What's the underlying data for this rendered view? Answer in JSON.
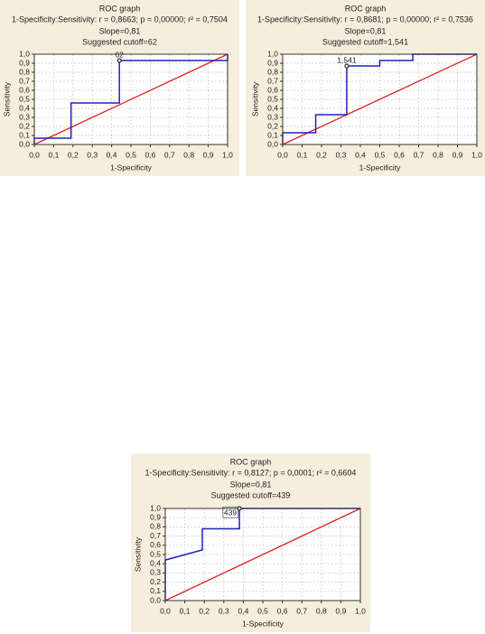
{
  "chart_data": [
    {
      "type": "line",
      "title": "ROC graph",
      "subtitle": "1-Specificity:Sensitivity:   r = 0,8663; p = 0,00000; r² = 0,7504",
      "slope": "Slope=0,81",
      "cutoff": "Suggested cutoff=62",
      "x_label": "1-Specificity",
      "y_label": "Sensitivity",
      "x": [
        0,
        0,
        0.19,
        0.19,
        0.44,
        0.44,
        1,
        1
      ],
      "values": [
        0,
        0.07,
        0.07,
        0.46,
        0.46,
        0.93,
        0.93,
        1
      ],
      "color": "#2020c0",
      "reference_color": "#e02020",
      "cutoff_point": {
        "x": 0.44,
        "y": 0.93,
        "label": "62"
      },
      "xlim": [
        0,
        1
      ],
      "ylim": [
        0,
        1
      ],
      "xticks": [
        {
          "value": 0,
          "label": "0,0"
        },
        {
          "value": 0.1,
          "label": "0,1"
        },
        {
          "value": 0.2,
          "label": "0,2"
        },
        {
          "value": 0.3,
          "label": "0,3"
        },
        {
          "value": 0.4,
          "label": "0,4"
        },
        {
          "value": 0.5,
          "label": "0,5"
        },
        {
          "value": 0.6,
          "label": "0,6"
        },
        {
          "value": 0.7,
          "label": "0,7"
        },
        {
          "value": 0.8,
          "label": "0,8"
        },
        {
          "value": 0.9,
          "label": "0,9"
        },
        {
          "value": 1,
          "label": "1,0"
        }
      ],
      "yticks": [
        {
          "value": 0,
          "label": "0,0"
        },
        {
          "value": 0.1,
          "label": "0,1"
        },
        {
          "value": 0.2,
          "label": "0,2"
        },
        {
          "value": 0.3,
          "label": "0,3"
        },
        {
          "value": 0.4,
          "label": "0,4"
        },
        {
          "value": 0.5,
          "label": "0,5"
        },
        {
          "value": 0.6,
          "label": "0,6"
        },
        {
          "value": 0.7,
          "label": "0,7"
        },
        {
          "value": 0.8,
          "label": "0,8"
        },
        {
          "value": 0.9,
          "label": "0,9"
        },
        {
          "value": 1,
          "label": "1,0"
        }
      ],
      "grid": true
    },
    {
      "type": "line",
      "title": "ROC graph",
      "subtitle": "1-Specificity:Sensitivity:   r = 0,8681; p = 0,00000; r² = 0,7536",
      "slope": "Slope=0,81",
      "cutoff": "Suggested cutoff=1,541",
      "x_label": "1-Specificity",
      "y_label": "Sensitivity",
      "x": [
        0,
        0,
        0.17,
        0.17,
        0.33,
        0.33,
        0.5,
        0.5,
        0.67,
        0.67,
        1
      ],
      "values": [
        0,
        0.13,
        0.13,
        0.33,
        0.33,
        0.87,
        0.87,
        0.93,
        0.93,
        1,
        1
      ],
      "color": "#2020c0",
      "reference_color": "#e02020",
      "cutoff_point": {
        "x": 0.33,
        "y": 0.87,
        "label": "1,541"
      },
      "xlim": [
        0,
        1
      ],
      "ylim": [
        0,
        1
      ],
      "xticks": [
        {
          "value": 0,
          "label": "0,0"
        },
        {
          "value": 0.1,
          "label": "0,1"
        },
        {
          "value": 0.2,
          "label": "0,2"
        },
        {
          "value": 0.3,
          "label": "0,3"
        },
        {
          "value": 0.4,
          "label": "0,4"
        },
        {
          "value": 0.5,
          "label": "0,5"
        },
        {
          "value": 0.6,
          "label": "0,6"
        },
        {
          "value": 0.7,
          "label": "0,7"
        },
        {
          "value": 0.8,
          "label": "0,8"
        },
        {
          "value": 0.9,
          "label": "0,9"
        },
        {
          "value": 1,
          "label": "1,0"
        }
      ],
      "yticks": [
        {
          "value": 0,
          "label": "0,0"
        },
        {
          "value": 0.1,
          "label": "0,1"
        },
        {
          "value": 0.2,
          "label": "0,2"
        },
        {
          "value": 0.3,
          "label": "0,3"
        },
        {
          "value": 0.4,
          "label": "0,4"
        },
        {
          "value": 0.5,
          "label": "0,5"
        },
        {
          "value": 0.6,
          "label": "0,6"
        },
        {
          "value": 0.7,
          "label": "0,7"
        },
        {
          "value": 0.8,
          "label": "0,8"
        },
        {
          "value": 0.9,
          "label": "0,9"
        },
        {
          "value": 1,
          "label": "1,0"
        }
      ],
      "grid": true
    },
    {
      "type": "line",
      "title": "ROC graph",
      "subtitle": "1-Specificity:Sensitivity:   r = 0,8127; p = 0,0001; r² = 0,6604",
      "slope": "Slope=0,81",
      "cutoff": "Suggested cutoff=439",
      "x_label": "1-Specificity",
      "y_label": "Sensitivity",
      "x": [
        0,
        0,
        0.19,
        0.19,
        0.38,
        0.38,
        1
      ],
      "values": [
        0,
        0.44,
        0.55,
        0.78,
        0.78,
        1,
        1
      ],
      "color": "#2020c0",
      "reference_color": "#e02020",
      "cutoff_point": {
        "x": 0.38,
        "y": 1,
        "label": "439"
      },
      "xlim": [
        0,
        1
      ],
      "ylim": [
        0,
        1
      ],
      "xticks": [
        {
          "value": 0,
          "label": "0,0"
        },
        {
          "value": 0.1,
          "label": "0,1"
        },
        {
          "value": 0.2,
          "label": "0,2"
        },
        {
          "value": 0.3,
          "label": "0,3"
        },
        {
          "value": 0.4,
          "label": "0,4"
        },
        {
          "value": 0.5,
          "label": "0,5"
        },
        {
          "value": 0.6,
          "label": "0,6"
        },
        {
          "value": 0.7,
          "label": "0,7"
        },
        {
          "value": 0.8,
          "label": "0,8"
        },
        {
          "value": 0.9,
          "label": "0,9"
        },
        {
          "value": 1,
          "label": "1,0"
        }
      ],
      "yticks": [
        {
          "value": 0,
          "label": "0,0"
        },
        {
          "value": 0.1,
          "label": "0,1"
        },
        {
          "value": 0.2,
          "label": "0,2"
        },
        {
          "value": 0.3,
          "label": "0,3"
        },
        {
          "value": 0.4,
          "label": "0,4"
        },
        {
          "value": 0.5,
          "label": "0,5"
        },
        {
          "value": 0.6,
          "label": "0,6"
        },
        {
          "value": 0.7,
          "label": "0,7"
        },
        {
          "value": 0.8,
          "label": "0,8"
        },
        {
          "value": 0.9,
          "label": "0,9"
        },
        {
          "value": 1,
          "label": "1,0"
        }
      ],
      "grid": true
    }
  ]
}
